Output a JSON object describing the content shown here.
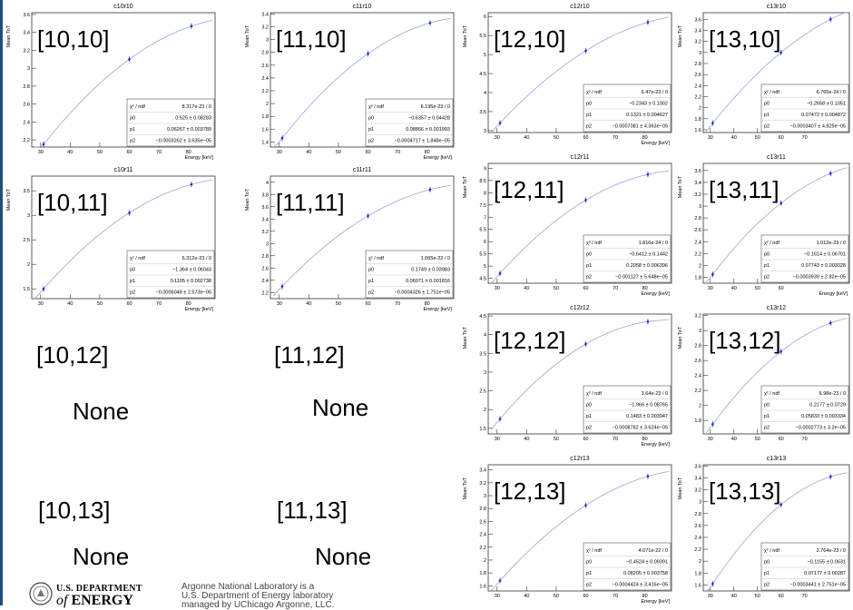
{
  "chart_data": [
    {
      "id": "c10r10",
      "type": "scatter",
      "title": "c10r10",
      "cell_label": "[10,10]",
      "ylabel": "Mean ToT",
      "xlabel": "Energy [keV]",
      "x": [
        31,
        60,
        81
      ],
      "y": [
        2.15,
        3.1,
        3.47
      ],
      "ylim": [
        2.12,
        3.62
      ],
      "xlim": [
        27,
        89
      ],
      "xticks": [
        30,
        40,
        50,
        60,
        70,
        80
      ],
      "yticks": [
        2.2,
        2.4,
        2.6,
        2.8,
        3,
        3.2,
        3.4,
        3.6
      ],
      "stats": {
        "chi2": "8.317e-23 / 0",
        "p0": "0.525 ± 0.08283",
        "p1": "0.06267 ± 0.003789",
        "p2": "−0.0003262 ± 3.635e−05"
      }
    },
    {
      "id": "c11r10",
      "type": "scatter",
      "title": "c11r10",
      "cell_label": "[11,10]",
      "ylabel": "Mean ToT",
      "xlabel": "Energy [keV]",
      "x": [
        31,
        60,
        81
      ],
      "y": [
        1.46,
        2.78,
        3.26
      ],
      "ylim": [
        1.32,
        3.42
      ],
      "xlim": [
        27,
        89
      ],
      "xticks": [
        30,
        40,
        50,
        60,
        70,
        80
      ],
      "yticks": [
        1.4,
        1.6,
        1.8,
        2,
        2.2,
        2.4,
        2.6,
        2.8,
        3,
        3.2,
        3.4
      ],
      "stats": {
        "chi2": "6.195e-23 / 0",
        "p0": "−0.6357 ± 0.04428",
        "p1": "0.08866 ± 0.001993",
        "p2": "−0.0004717 ± 1.848e−05"
      }
    },
    {
      "id": "c12r10",
      "type": "scatter",
      "title": "c12r10",
      "cell_label": "[12,10]",
      "ylabel": "Mean ToT",
      "xlabel": "Energy [keV]",
      "x": [
        31,
        60,
        81
      ],
      "y": [
        3.2,
        5.1,
        5.85
      ],
      "ylim": [
        2.95,
        6.1
      ],
      "xlim": [
        27,
        89
      ],
      "xticks": [
        30,
        40,
        50,
        60,
        70,
        80
      ],
      "yticks": [
        3,
        3.5,
        4,
        4.5,
        5,
        5.5,
        6
      ],
      "stats": {
        "chi2": "6.47e-23 / 0",
        "p0": "−0.2343 ± 0.1002",
        "p1": "0.1321 ± 0.004627",
        "p2": "−0.0007081 ± 4.363e−05"
      }
    },
    {
      "id": "c13r10",
      "type": "scatter",
      "title": "c13r10",
      "cell_label": "[13,10]",
      "ylabel": "Mean ToT",
      "xlabel": "",
      "x": [
        31,
        60,
        81
      ],
      "y": [
        1.72,
        3.0,
        3.6
      ],
      "ylim": [
        1.55,
        3.72
      ],
      "xlim": [
        27,
        89
      ],
      "xticks": [
        30,
        40,
        50,
        60,
        70
      ],
      "yticks": [
        1.6,
        1.8,
        2,
        2.2,
        2.4,
        2.6,
        2.8,
        3,
        3.2,
        3.4,
        3.6
      ],
      "stats": {
        "chi2": "6.765e-24 / 0",
        "p0": "−0.2658 ± 0.1051",
        "p1": "0.07472 ± 0.004872",
        "p2": "−0.0003407 ± 4.825e−05"
      }
    },
    {
      "id": "c10r11",
      "type": "scatter",
      "title": "c10r11",
      "cell_label": "[10,11]",
      "ylabel": "Mean ToT",
      "xlabel": "Energy [keV]",
      "x": [
        31,
        60,
        81
      ],
      "y": [
        1.5,
        3.05,
        3.63
      ],
      "ylim": [
        1.3,
        3.8
      ],
      "xlim": [
        27,
        89
      ],
      "xticks": [
        30,
        40,
        50,
        60,
        70,
        80
      ],
      "yticks": [
        1.5,
        2,
        2.5,
        3,
        3.5
      ],
      "stats": {
        "chi2": "6.312e-23 / 0",
        "p0": "−1.364 ± 0.06043",
        "p1": "0.1105 ± 0.002738",
        "p2": "−0.0006048 ± 2.573e−05"
      }
    },
    {
      "id": "c11r11",
      "type": "scatter",
      "title": "c11r11",
      "cell_label": "[11,11]",
      "ylabel": "Mean ToT",
      "xlabel": "Energy [keV]",
      "x": [
        31,
        60,
        81
      ],
      "y": [
        2.3,
        3.45,
        3.88
      ],
      "ylim": [
        2.1,
        4.1
      ],
      "xlim": [
        27,
        89
      ],
      "xticks": [
        30,
        40,
        50,
        60,
        70,
        80
      ],
      "yticks": [
        2.2,
        2.4,
        2.6,
        2.8,
        3,
        3.2,
        3.4,
        3.6,
        3.8,
        4
      ],
      "stats": {
        "chi2": "1.065e-22 / 0",
        "p0": "0.1749 ± 0.03983",
        "p1": "0.06071 ± 0.001816",
        "p2": "−0.0004326 ± 1.751e−05"
      }
    },
    {
      "id": "c12r11",
      "type": "scatter",
      "title": "c12r11",
      "cell_label": "[12,11]",
      "ylabel": "Mean ToT",
      "xlabel": "Energy [keV]",
      "x": [
        31,
        60,
        81
      ],
      "y": [
        4.7,
        7.7,
        8.75
      ],
      "ylim": [
        4.3,
        9.2
      ],
      "xlim": [
        27,
        89
      ],
      "xticks": [
        30,
        40,
        50,
        60,
        70,
        80
      ],
      "yticks": [
        4.5,
        5,
        5.5,
        6,
        6.5,
        7,
        7.5,
        8,
        8.5,
        9
      ],
      "stats": {
        "chi2": "1.816e-24 / 0",
        "p0": "−0.6412 ± 0.1442",
        "p1": "0.2058 ± 0.006396",
        "p2": "−0.001127 ± 5.648e−05"
      }
    },
    {
      "id": "c13r11",
      "type": "scatter",
      "title": "c13r11",
      "cell_label": "[13,11]",
      "ylabel": "Mean ToT",
      "xlabel": "Energy [keV]",
      "x": [
        31,
        60,
        81
      ],
      "y": [
        1.85,
        3.05,
        3.55
      ],
      "ylim": [
        1.7,
        3.72
      ],
      "xlim": [
        27,
        89
      ],
      "xticks": [
        30,
        40,
        50,
        60
      ],
      "yticks": [
        1.8,
        2,
        2.2,
        2.4,
        2.6,
        2.8,
        3,
        3.2,
        3.4,
        3.6
      ],
      "stats": {
        "chi2": "1.012e-23 / 0",
        "p0": "−0.1614 ± 0.06701",
        "p1": "0.07743 ± 0.003028",
        "p2": "−0.0003939 ± 2.82e−05"
      }
    },
    {
      "id": "c12r12",
      "type": "scatter",
      "title": "c12r12",
      "cell_label": "[12,12]",
      "ylabel": "Mean ToT",
      "xlabel": "Energy [keV]",
      "x": [
        31,
        60,
        81
      ],
      "y": [
        1.75,
        3.75,
        4.35
      ],
      "ylim": [
        1.35,
        4.55
      ],
      "xlim": [
        27,
        89
      ],
      "xticks": [
        30,
        40,
        50,
        60,
        70,
        80
      ],
      "yticks": [
        1.5,
        2,
        2.5,
        3,
        3.5,
        4,
        4.5
      ],
      "stats": {
        "chi2": "3.64e-23 / 0",
        "p0": "−1.966 ± 0.08765",
        "p1": "0.1483 ± 0.003947",
        "p2": "−0.0008782 ± 3.624e−05"
      }
    },
    {
      "id": "c13r12",
      "type": "scatter",
      "title": "c13r12",
      "cell_label": "[13,12]",
      "ylabel": "Mean ToT",
      "xlabel": "",
      "x": [
        31,
        60,
        81
      ],
      "y": [
        1.75,
        2.72,
        3.1
      ],
      "ylim": [
        1.62,
        3.22
      ],
      "xlim": [
        27,
        89
      ],
      "xticks": [
        30,
        40,
        50,
        60,
        70
      ],
      "yticks": [
        1.8,
        2,
        2.2,
        2.4,
        2.6,
        2.8,
        3,
        3.2
      ],
      "stats": {
        "chi2": "6.98e-23 / 0",
        "p0": "0.2177 ± 0.0729",
        "p1": "0.05833 ± 0.003334",
        "p2": "−0.0002773 ± 3.2e−05"
      }
    },
    {
      "id": "c12r13",
      "type": "scatter",
      "title": "c12r13",
      "cell_label": "[12,13]",
      "ylabel": "Mean ToT",
      "xlabel": "Energy [keV]",
      "x": [
        31,
        60,
        81
      ],
      "y": [
        1.68,
        2.85,
        3.3
      ],
      "ylim": [
        1.52,
        3.48
      ],
      "xlim": [
        27,
        89
      ],
      "xticks": [
        30,
        40,
        50,
        60,
        70,
        80
      ],
      "yticks": [
        1.6,
        1.8,
        2,
        2.2,
        2.4,
        2.6,
        2.8,
        3,
        3.2,
        3.4
      ],
      "stats": {
        "chi2": "4.071e-22 / 0",
        "p0": "−0.4524 ± 0.09391",
        "p1": "0.08205 ± 0.003758",
        "p2": "−0.0004424 ± 3.416e−05"
      }
    },
    {
      "id": "c13r13",
      "type": "scatter",
      "title": "c13r13",
      "cell_label": "[13,13]",
      "ylabel": "Mean ToT",
      "xlabel": "",
      "x": [
        31,
        60,
        81
      ],
      "y": [
        1.62,
        2.95,
        3.42
      ],
      "ylim": [
        1.5,
        3.62
      ],
      "xlim": [
        27,
        89
      ],
      "xticks": [
        30,
        40,
        50,
        60,
        70
      ],
      "yticks": [
        1.6,
        1.8,
        2,
        2.2,
        2.4,
        2.6,
        2.8,
        3,
        3.2,
        3.4,
        3.6
      ],
      "stats": {
        "chi2": "2.764e-23 / 0",
        "p0": "−0.1155 ± 0.0631",
        "p1": "0.07177 ± 0.00287",
        "p2": "−0.0003441 ± 2.751e−05"
      }
    }
  ],
  "missing": [
    {
      "label": "[10,12]",
      "status": "None"
    },
    {
      "label": "[11,12]",
      "status": "None"
    },
    {
      "label": "[10,13]",
      "status": "None"
    },
    {
      "label": "[11,13]",
      "status": "None"
    }
  ],
  "stat_names": {
    "chi2": "χ² / ndf",
    "p0": "p0",
    "p1": "p1",
    "p2": "p2"
  },
  "footer": {
    "doe_line1": "U.S. DEPARTMENT",
    "doe_line2_of": "of",
    "doe_line2_energy": "ENERGY",
    "ack_line1": "Argonne National Laboratory is a",
    "ack_line2": "U.S. Department of Energy laboratory",
    "ack_line3": "managed by UChicago Argonne, LLC."
  },
  "colors": {
    "curve": "#9aa6d8",
    "points": "#1f2ad6",
    "axis": "#333333",
    "frame": "#aaaaaa",
    "edge": "#1f4e79"
  }
}
